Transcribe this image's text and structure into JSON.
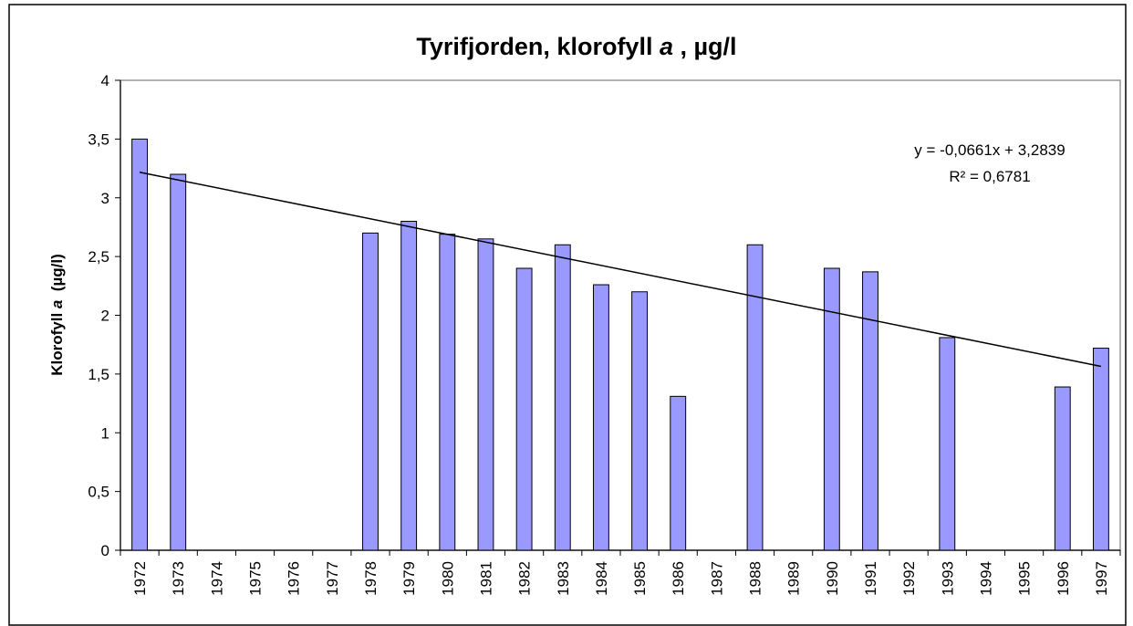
{
  "chart_data": {
    "type": "bar",
    "title_parts": [
      "Tyrifjorden, klorofyll ",
      "a",
      " , µg/l"
    ],
    "y_label_parts": [
      "Klorofyll ",
      "a",
      "  (µg/l)"
    ],
    "categories": [
      "1972",
      "1973",
      "1974",
      "1975",
      "1976",
      "1977",
      "1978",
      "1979",
      "1980",
      "1981",
      "1982",
      "1983",
      "1984",
      "1985",
      "1986",
      "1987",
      "1988",
      "1989",
      "1990",
      "1991",
      "1992",
      "1993",
      "1994",
      "1995",
      "1996",
      "1997"
    ],
    "values": [
      3.5,
      3.2,
      null,
      null,
      null,
      null,
      2.7,
      2.8,
      2.69,
      2.65,
      2.4,
      2.6,
      2.26,
      2.2,
      1.31,
      null,
      2.6,
      null,
      2.4,
      2.37,
      null,
      1.81,
      null,
      null,
      1.39,
      1.72
    ],
    "color": "#9999ff",
    "ylim": [
      0,
      4
    ],
    "yticks": [
      0,
      {
        "value": 0.5,
        "label": "0,5"
      },
      1,
      {
        "value": 1.5,
        "label": "1,5"
      },
      2,
      {
        "value": 2.5,
        "label": "2,5"
      },
      3,
      {
        "value": 3.5,
        "label": "3,5"
      },
      4
    ],
    "grid": false,
    "trendline": {
      "slope": -0.0661,
      "intercept": 3.2839,
      "label": "y = -0,0661x + 3,2839",
      "r2": 0.6781,
      "r2_label": "R² = 0,6781"
    }
  }
}
